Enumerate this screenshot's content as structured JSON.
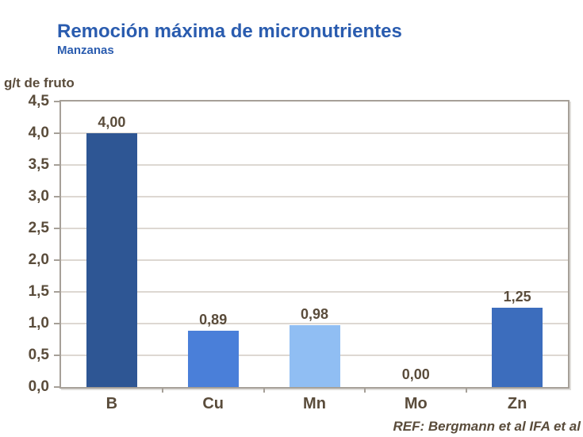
{
  "header": {
    "title": "Remoción máxima de micronutrientes",
    "subtitle": "Manzanas"
  },
  "chart_data": {
    "type": "bar",
    "title": "Remoción máxima de micronutrientes",
    "subtitle": "Manzanas",
    "unit_label": "g/t de fruto",
    "categories": [
      "B",
      "Cu",
      "Mn",
      "Mo",
      "Zn"
    ],
    "values": [
      4.0,
      0.89,
      0.98,
      0.0,
      1.25
    ],
    "value_labels": [
      "4,00",
      "0,89",
      "0,98",
      "0,00",
      "1,25"
    ],
    "bar_colors": [
      "#2e5694",
      "#4a7fd9",
      "#90bef3",
      null,
      "#3c6dbd"
    ],
    "ylim": [
      0,
      4.5
    ],
    "ytick_step": 0.5,
    "ytick_labels": [
      "4,5",
      "4,0",
      "3,5",
      "3,0",
      "2,5",
      "2,0",
      "1,5",
      "1,0",
      "0,5",
      "0,0"
    ],
    "grid": true,
    "legend": false
  },
  "footer": {
    "reference": "REF: Bergmann et al IFA et al"
  },
  "colors": {
    "title_text": "#2a5caf",
    "axis_text": "#5a4c3b",
    "gridline": "#ddd8d2",
    "plot_border": "#a6a098",
    "background": "#ffffff"
  }
}
